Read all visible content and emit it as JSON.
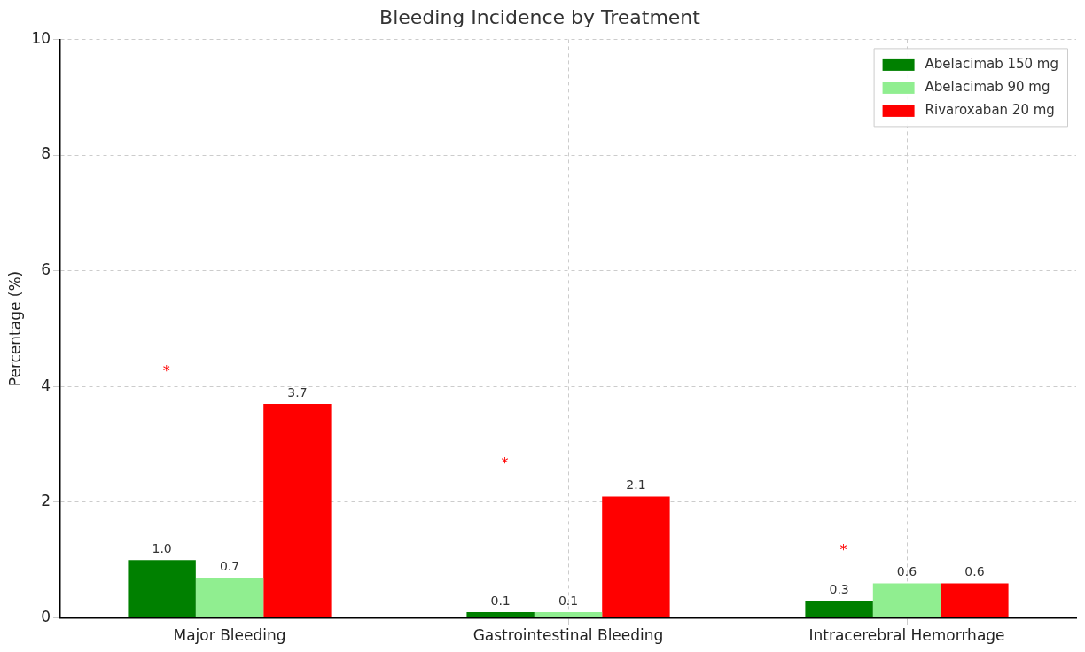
{
  "chart_data": {
    "type": "bar",
    "title": "Bleeding Incidence by Treatment",
    "y_label": "Percentage (%)",
    "categories": [
      "Major Bleeding",
      "Gastrointestinal Bleeding",
      "Intracerebral Hemorrhage"
    ],
    "series": [
      {
        "name": "Abelacimab 150 mg",
        "color": "#008000",
        "values": [
          1.0,
          0.1,
          0.3
        ],
        "value_labels": [
          "1.0",
          "0.1",
          "0.3"
        ]
      },
      {
        "name": "Abelacimab 90 mg",
        "color": "#90ee90",
        "values": [
          0.7,
          0.1,
          0.6
        ],
        "value_labels": [
          "0.7",
          "0.1",
          "0.6"
        ]
      },
      {
        "name": "Rivaroxaban 20 mg",
        "color": "#ff0000",
        "values": [
          3.7,
          2.1,
          0.6
        ],
        "value_labels": [
          "3.7",
          "2.1",
          "0.6"
        ]
      }
    ],
    "ylim": [
      0,
      10
    ],
    "yticks": [
      0,
      2,
      4,
      6,
      8,
      10
    ],
    "grid": true,
    "legend": "upper right",
    "data_labels": true,
    "annotations": [
      {
        "text": "*",
        "category": "Major Bleeding",
        "y": 4.3,
        "color": "#ff0000"
      },
      {
        "text": "*",
        "category": "Gastrointestinal Bleeding",
        "y": 2.7,
        "color": "#ff0000"
      },
      {
        "text": "*",
        "category": "Intracerebral Hemorrhage",
        "y": 1.2,
        "color": "#ff0000"
      }
    ]
  }
}
